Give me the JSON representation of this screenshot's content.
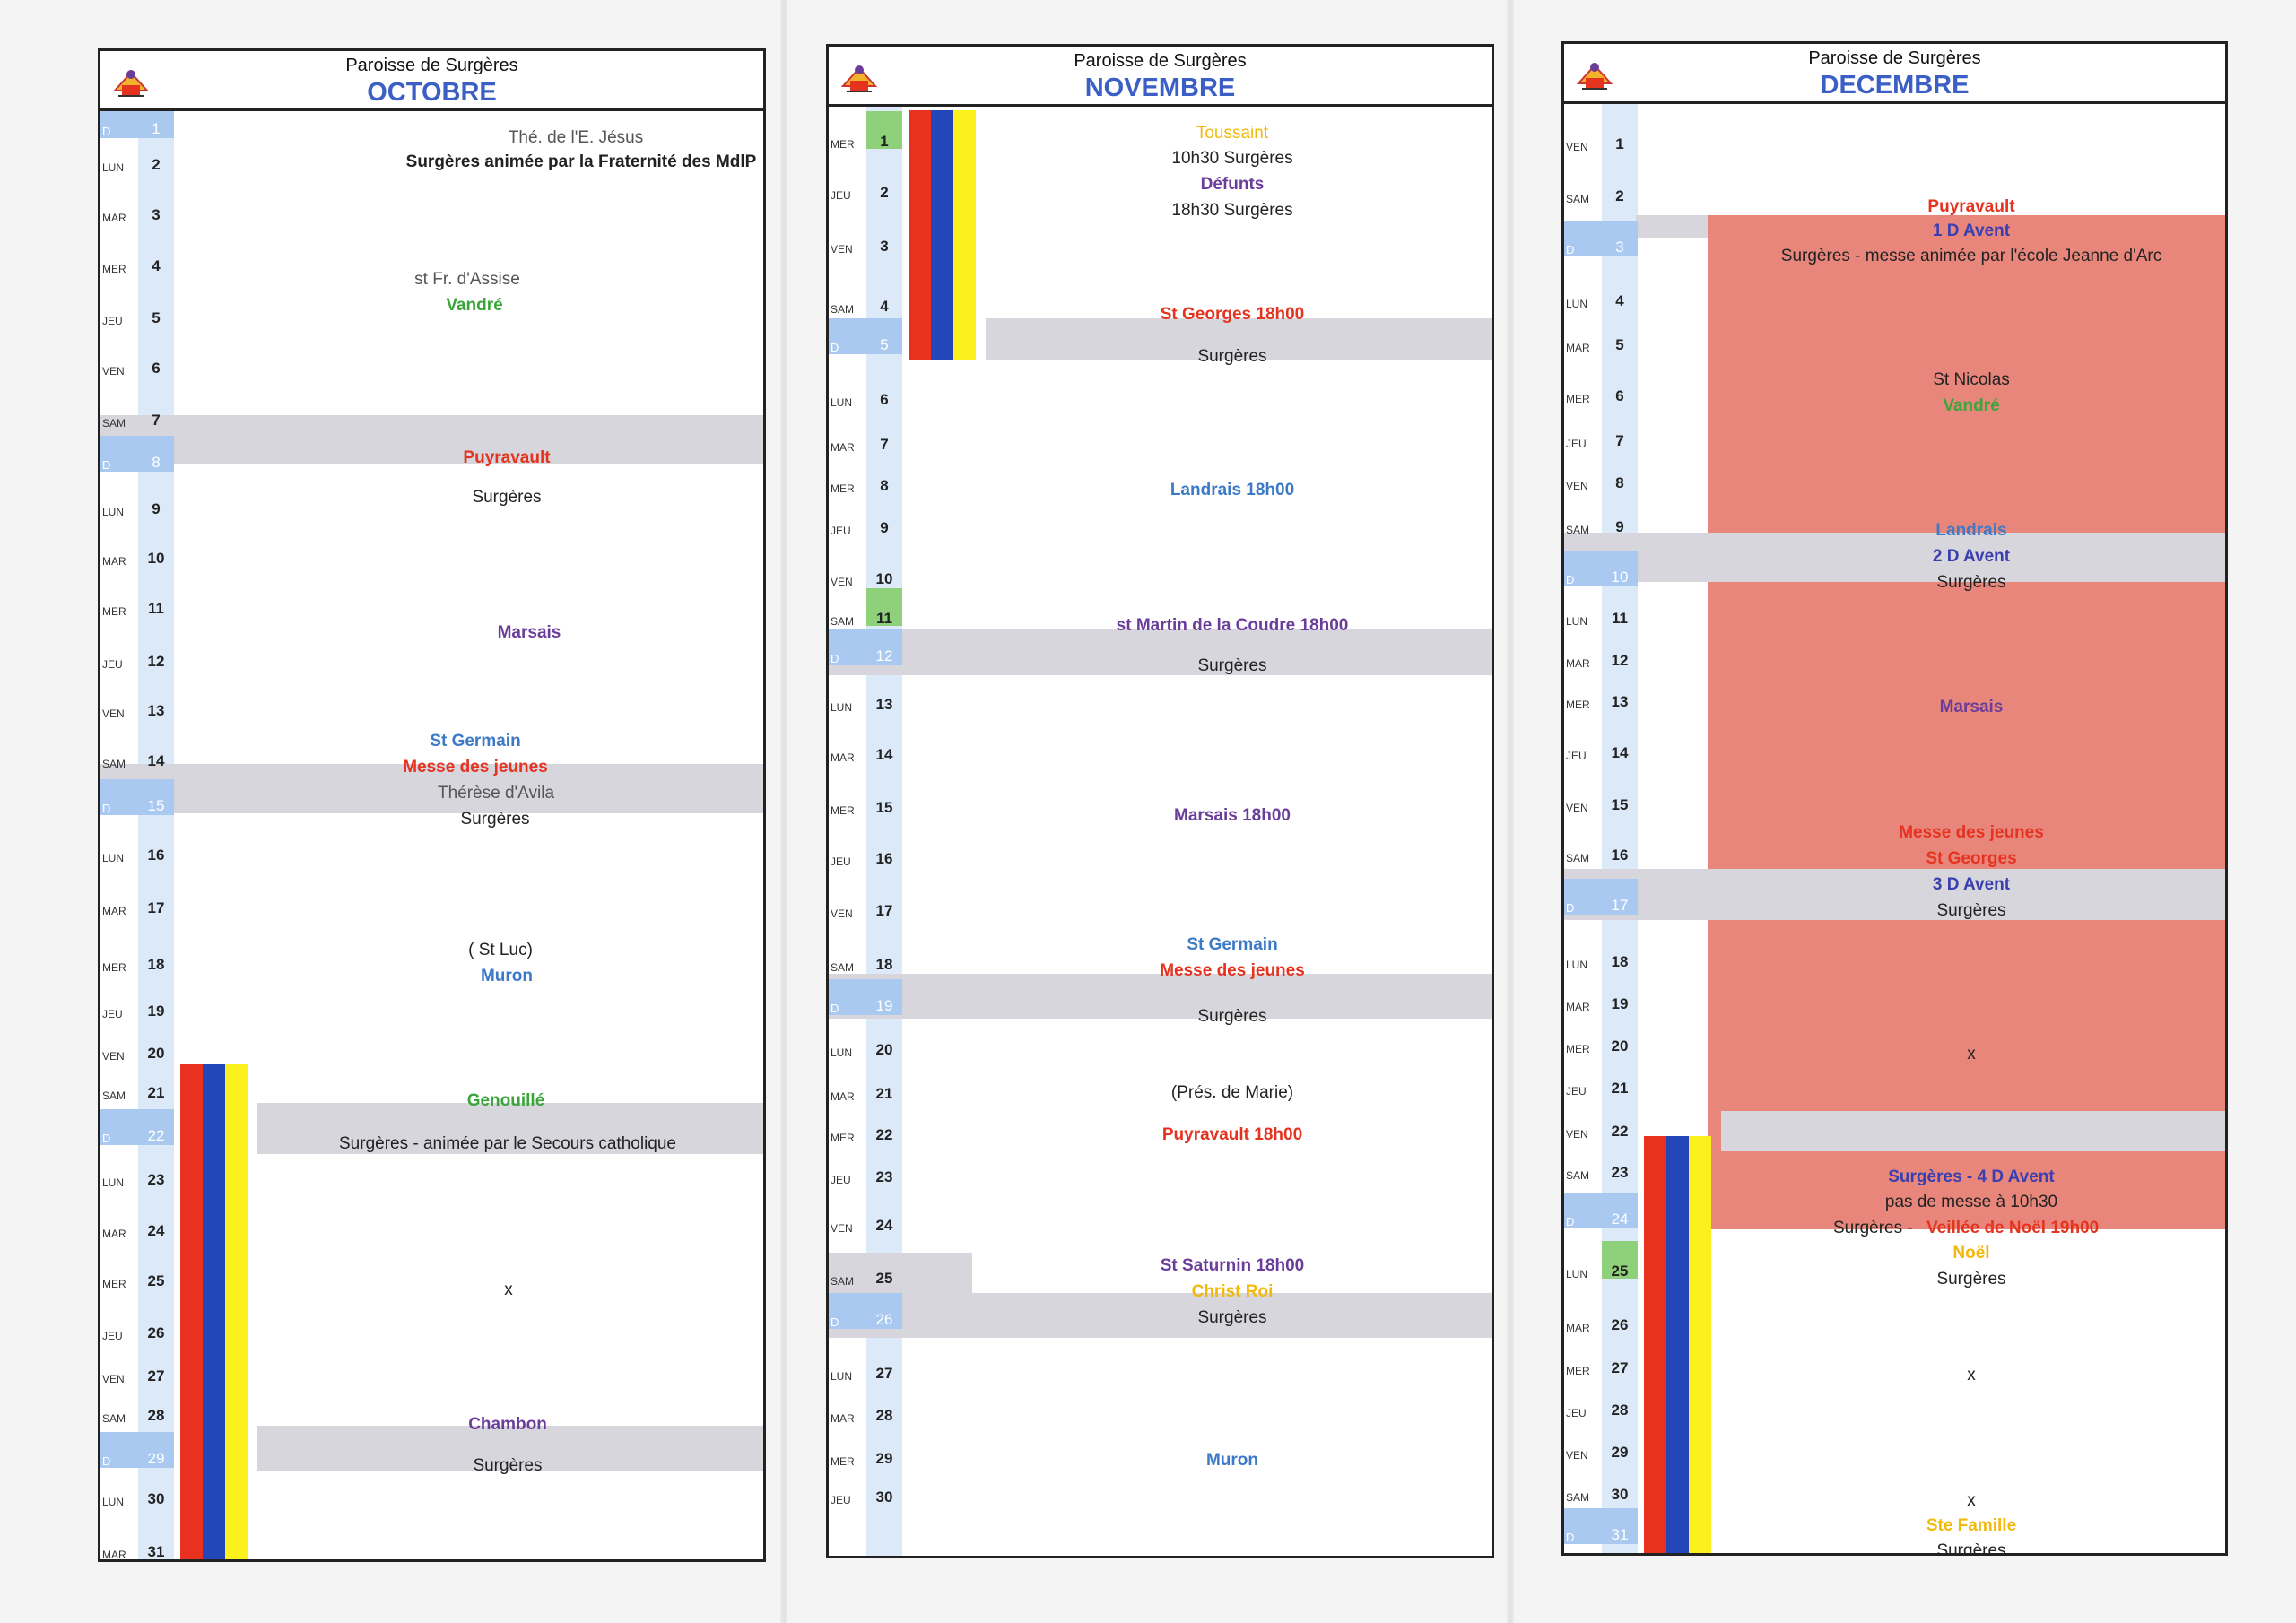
{
  "parish": "Paroisse de Surgères",
  "colors": {
    "black": "#222222",
    "gray": "#555555",
    "green": "#3aa53a",
    "red": "#e53320",
    "purple": "#6a3d9a",
    "blue": "#3c7ac8",
    "yellow": "#f2b90c",
    "navy": "#3a3fb0",
    "flag_red": "#e8311f",
    "flag_blue": "#2346b8",
    "flag_yellow": "#fbf21d"
  },
  "months": [
    {
      "name": "OCTOBRE",
      "days": [
        {
          "dow": "D",
          "n": "1"
        },
        {
          "dow": "LUN",
          "n": "2"
        },
        {
          "dow": "MAR",
          "n": "3"
        },
        {
          "dow": "MER",
          "n": "4"
        },
        {
          "dow": "JEU",
          "n": "5"
        },
        {
          "dow": "VEN",
          "n": "6"
        },
        {
          "dow": "SAM",
          "n": "7"
        },
        {
          "dow": "D",
          "n": "8"
        },
        {
          "dow": "LUN",
          "n": "9"
        },
        {
          "dow": "MAR",
          "n": "10"
        },
        {
          "dow": "MER",
          "n": "11"
        },
        {
          "dow": "JEU",
          "n": "12"
        },
        {
          "dow": "VEN",
          "n": "13"
        },
        {
          "dow": "SAM",
          "n": "14"
        },
        {
          "dow": "D",
          "n": "15"
        },
        {
          "dow": "LUN",
          "n": "16"
        },
        {
          "dow": "MAR",
          "n": "17"
        },
        {
          "dow": "MER",
          "n": "18"
        },
        {
          "dow": "JEU",
          "n": "19"
        },
        {
          "dow": "VEN",
          "n": "20"
        },
        {
          "dow": "SAM",
          "n": "21"
        },
        {
          "dow": "D",
          "n": "22"
        },
        {
          "dow": "LUN",
          "n": "23"
        },
        {
          "dow": "MAR",
          "n": "24"
        },
        {
          "dow": "MER",
          "n": "25"
        },
        {
          "dow": "JEU",
          "n": "26"
        },
        {
          "dow": "VEN",
          "n": "27"
        },
        {
          "dow": "SAM",
          "n": "28"
        },
        {
          "dow": "D",
          "n": "29"
        },
        {
          "dow": "LUN",
          "n": "30"
        },
        {
          "dow": "MAR",
          "n": "31"
        }
      ],
      "events": [
        {
          "text": "Thé. de l'E. Jésus",
          "color": "gray"
        },
        {
          "text": "Surgères animée par la Fraternité des MdlP",
          "color": "black"
        },
        {
          "text": "st Fr. d'Assise",
          "color": "gray"
        },
        {
          "text": "Vandré",
          "color": "green"
        },
        {
          "text": "Puyravault",
          "color": "red"
        },
        {
          "text": "Surgères",
          "color": "black"
        },
        {
          "text": "Marsais",
          "color": "purple"
        },
        {
          "text": "St Germain",
          "color": "blue"
        },
        {
          "text": "Messe des jeunes",
          "color": "red"
        },
        {
          "text": "Thérèse d'Avila",
          "color": "gray"
        },
        {
          "text": "Surgères",
          "color": "black"
        },
        {
          "text": "( St Luc)",
          "color": "black"
        },
        {
          "text": "Muron",
          "color": "blue"
        },
        {
          "text": "Genouillé",
          "color": "green"
        },
        {
          "text": "Surgères - animée par le Secours catholique",
          "color": "black"
        },
        {
          "text": "x",
          "color": "black"
        },
        {
          "text": "Chambon",
          "color": "purple"
        },
        {
          "text": "Surgères",
          "color": "black"
        }
      ]
    },
    {
      "name": "NOVEMBRE",
      "days": [
        {
          "dow": "MER",
          "n": "1"
        },
        {
          "dow": "JEU",
          "n": "2"
        },
        {
          "dow": "VEN",
          "n": "3"
        },
        {
          "dow": "SAM",
          "n": "4"
        },
        {
          "dow": "D",
          "n": "5"
        },
        {
          "dow": "LUN",
          "n": "6"
        },
        {
          "dow": "MAR",
          "n": "7"
        },
        {
          "dow": "MER",
          "n": "8"
        },
        {
          "dow": "JEU",
          "n": "9"
        },
        {
          "dow": "VEN",
          "n": "10"
        },
        {
          "dow": "SAM",
          "n": "11"
        },
        {
          "dow": "D",
          "n": "12"
        },
        {
          "dow": "LUN",
          "n": "13"
        },
        {
          "dow": "MAR",
          "n": "14"
        },
        {
          "dow": "MER",
          "n": "15"
        },
        {
          "dow": "JEU",
          "n": "16"
        },
        {
          "dow": "VEN",
          "n": "17"
        },
        {
          "dow": "SAM",
          "n": "18"
        },
        {
          "dow": "D",
          "n": "19"
        },
        {
          "dow": "LUN",
          "n": "20"
        },
        {
          "dow": "MAR",
          "n": "21"
        },
        {
          "dow": "MER",
          "n": "22"
        },
        {
          "dow": "JEU",
          "n": "23"
        },
        {
          "dow": "VEN",
          "n": "24"
        },
        {
          "dow": "SAM",
          "n": "25"
        },
        {
          "dow": "D",
          "n": "26"
        },
        {
          "dow": "LUN",
          "n": "27"
        },
        {
          "dow": "MAR",
          "n": "28"
        },
        {
          "dow": "MER",
          "n": "29"
        },
        {
          "dow": "JEU",
          "n": "30"
        }
      ],
      "events": [
        {
          "text": "Toussaint",
          "color": "yellow"
        },
        {
          "text": "10h30 Surgères",
          "color": "black"
        },
        {
          "text": "Défunts",
          "color": "purple"
        },
        {
          "text": "18h30 Surgères",
          "color": "black"
        },
        {
          "text": "St Georges 18h00",
          "color": "red"
        },
        {
          "text": "Surgères",
          "color": "black"
        },
        {
          "text": "Landrais 18h00",
          "color": "blue"
        },
        {
          "text": "st Martin de la Coudre 18h00",
          "color": "purple"
        },
        {
          "text": "Surgères",
          "color": "black"
        },
        {
          "text": "Marsais 18h00",
          "color": "purple"
        },
        {
          "text": "St Germain",
          "color": "blue"
        },
        {
          "text": "Messe des jeunes",
          "color": "red"
        },
        {
          "text": "Surgères",
          "color": "black"
        },
        {
          "text": "(Prés. de Marie)",
          "color": "black"
        },
        {
          "text": "Puyravault 18h00",
          "color": "red"
        },
        {
          "text": "St Saturnin 18h00",
          "color": "purple"
        },
        {
          "text": "Christ Roi",
          "color": "yellow"
        },
        {
          "text": "Surgères",
          "color": "black"
        },
        {
          "text": "Muron",
          "color": "blue"
        }
      ]
    },
    {
      "name": "DECEMBRE",
      "days": [
        {
          "dow": "VEN",
          "n": "1"
        },
        {
          "dow": "SAM",
          "n": "2"
        },
        {
          "dow": "D",
          "n": "3"
        },
        {
          "dow": "LUN",
          "n": "4"
        },
        {
          "dow": "MAR",
          "n": "5"
        },
        {
          "dow": "MER",
          "n": "6"
        },
        {
          "dow": "JEU",
          "n": "7"
        },
        {
          "dow": "VEN",
          "n": "8"
        },
        {
          "dow": "SAM",
          "n": "9"
        },
        {
          "dow": "D",
          "n": "10"
        },
        {
          "dow": "LUN",
          "n": "11"
        },
        {
          "dow": "MAR",
          "n": "12"
        },
        {
          "dow": "MER",
          "n": "13"
        },
        {
          "dow": "JEU",
          "n": "14"
        },
        {
          "dow": "VEN",
          "n": "15"
        },
        {
          "dow": "SAM",
          "n": "16"
        },
        {
          "dow": "D",
          "n": "17"
        },
        {
          "dow": "LUN",
          "n": "18"
        },
        {
          "dow": "MAR",
          "n": "19"
        },
        {
          "dow": "MER",
          "n": "20"
        },
        {
          "dow": "JEU",
          "n": "21"
        },
        {
          "dow": "VEN",
          "n": "22"
        },
        {
          "dow": "SAM",
          "n": "23"
        },
        {
          "dow": "D",
          "n": "24"
        },
        {
          "dow": "LUN",
          "n": "25"
        },
        {
          "dow": "MAR",
          "n": "26"
        },
        {
          "dow": "MER",
          "n": "27"
        },
        {
          "dow": "JEU",
          "n": "28"
        },
        {
          "dow": "VEN",
          "n": "29"
        },
        {
          "dow": "SAM",
          "n": "30"
        },
        {
          "dow": "D",
          "n": "31"
        }
      ],
      "events": [
        {
          "text": "Puyravault",
          "color": "red"
        },
        {
          "text": "1 D Avent",
          "color": "navy"
        },
        {
          "text": "Surgères - messe animée par l'école Jeanne d'Arc",
          "color": "black"
        },
        {
          "text": "St Nicolas",
          "color": "black"
        },
        {
          "text": "Vandré",
          "color": "green"
        },
        {
          "text": "Landrais",
          "color": "blue"
        },
        {
          "text": "2 D Avent",
          "color": "navy"
        },
        {
          "text": "Surgères",
          "color": "black"
        },
        {
          "text": "Marsais",
          "color": "purple"
        },
        {
          "text": "Messe des jeunes",
          "color": "red"
        },
        {
          "text": "St Georges",
          "color": "red"
        },
        {
          "text": "3 D Avent",
          "color": "navy"
        },
        {
          "text": "Surgères",
          "color": "black"
        },
        {
          "text": "x",
          "color": "black"
        },
        {
          "text": "Surgères - 4 D Avent",
          "color": "navy"
        },
        {
          "text": "pas de messe à 10h30",
          "color": "black"
        },
        {
          "text": "Surgères - ",
          "color": "black"
        },
        {
          "text": "Veillée de Noël 19h00",
          "color": "red"
        },
        {
          "text": "Noël",
          "color": "yellow"
        },
        {
          "text": "Surgères",
          "color": "black"
        },
        {
          "text": "x",
          "color": "black"
        },
        {
          "text": "x",
          "color": "black"
        },
        {
          "text": "Ste Famille",
          "color": "yellow"
        },
        {
          "text": "Surgères",
          "color": "black"
        }
      ]
    }
  ]
}
